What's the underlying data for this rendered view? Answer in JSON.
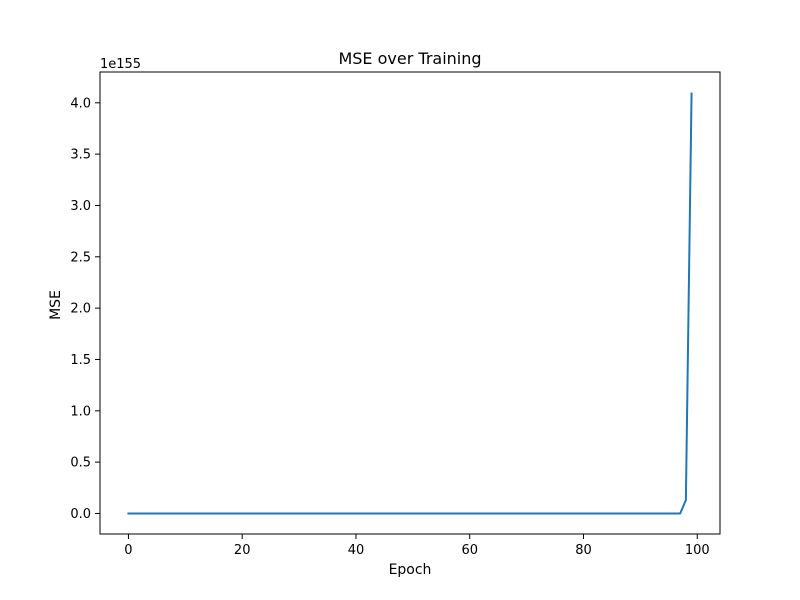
{
  "chart_data": {
    "type": "line",
    "title": "MSE over Training",
    "xlabel": "Epoch",
    "ylabel": "MSE",
    "y_offset_label": "1e155",
    "xlim": [
      -5,
      104
    ],
    "ylim": [
      -0.2,
      4.3
    ],
    "x_ticks": [
      0,
      20,
      40,
      60,
      80,
      100
    ],
    "y_ticks": [
      0.0,
      0.5,
      1.0,
      1.5,
      2.0,
      2.5,
      3.0,
      3.5,
      4.0
    ],
    "x_tick_labels": [
      "0",
      "20",
      "40",
      "60",
      "80",
      "100"
    ],
    "y_tick_labels": [
      "0.0",
      "0.5",
      "1.0",
      "1.5",
      "2.0",
      "2.5",
      "3.0",
      "3.5",
      "4.0"
    ],
    "grid": false,
    "series": [
      {
        "color": "#1f77b4",
        "x": [
          0,
          97,
          98,
          99
        ],
        "y": [
          0.0,
          0.0,
          0.13,
          4.09
        ]
      }
    ]
  }
}
